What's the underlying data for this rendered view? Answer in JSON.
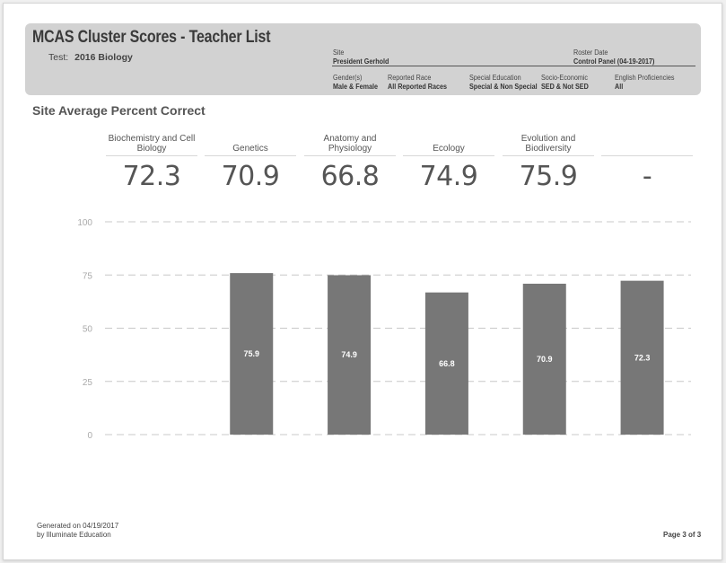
{
  "header": {
    "title": "MCAS Cluster Scores - Teacher List",
    "test_label": "Test:",
    "test_value": "2016 Biology",
    "site_label": "Site",
    "site_value": "President Gerhold",
    "roster_label": "Roster Date",
    "roster_value": "Control Panel (04-19-2017)",
    "filters": [
      {
        "label": "Gender(s)",
        "value": "Male & Female"
      },
      {
        "label": "Reported Race",
        "value": "All Reported Races"
      },
      {
        "label": "Special Education",
        "value": "Special & Non Special"
      },
      {
        "label": "Socio-Economic",
        "value": "SED & Not SED"
      },
      {
        "label": "English Proficiencies",
        "value": "All"
      }
    ]
  },
  "section_title": "Site Average Percent Correct",
  "score_cards": [
    {
      "name": "Biochemistry and Cell Biology",
      "score": "72.3"
    },
    {
      "name": "Genetics",
      "score": "70.9"
    },
    {
      "name": "Anatomy and Physiology",
      "score": "66.8"
    },
    {
      "name": "Ecology",
      "score": "74.9"
    },
    {
      "name": "Evolution and Biodiversity",
      "score": "75.9"
    },
    {
      "name": "",
      "score": "-"
    }
  ],
  "chart_data": {
    "type": "bar",
    "categories": [
      "",
      "",
      "",
      "",
      "",
      ""
    ],
    "values": [
      null,
      75.9,
      74.9,
      66.8,
      70.9,
      72.3
    ],
    "data_labels": [
      "",
      "75.9",
      "74.9",
      "66.8",
      "70.9",
      "72.3"
    ],
    "yticks": [
      "100",
      "75",
      "50",
      "25",
      "0"
    ],
    "ytick_values": [
      100,
      75,
      50,
      25,
      0
    ],
    "ylim": [
      0,
      100
    ],
    "grid": true,
    "bar_color": "#777777",
    "grid_color": "#c8c8c8"
  },
  "footer": {
    "generated_line1": "Generated on 04/19/2017",
    "generated_line2": "by Illuminate Education",
    "page": "Page 3 of 3"
  }
}
